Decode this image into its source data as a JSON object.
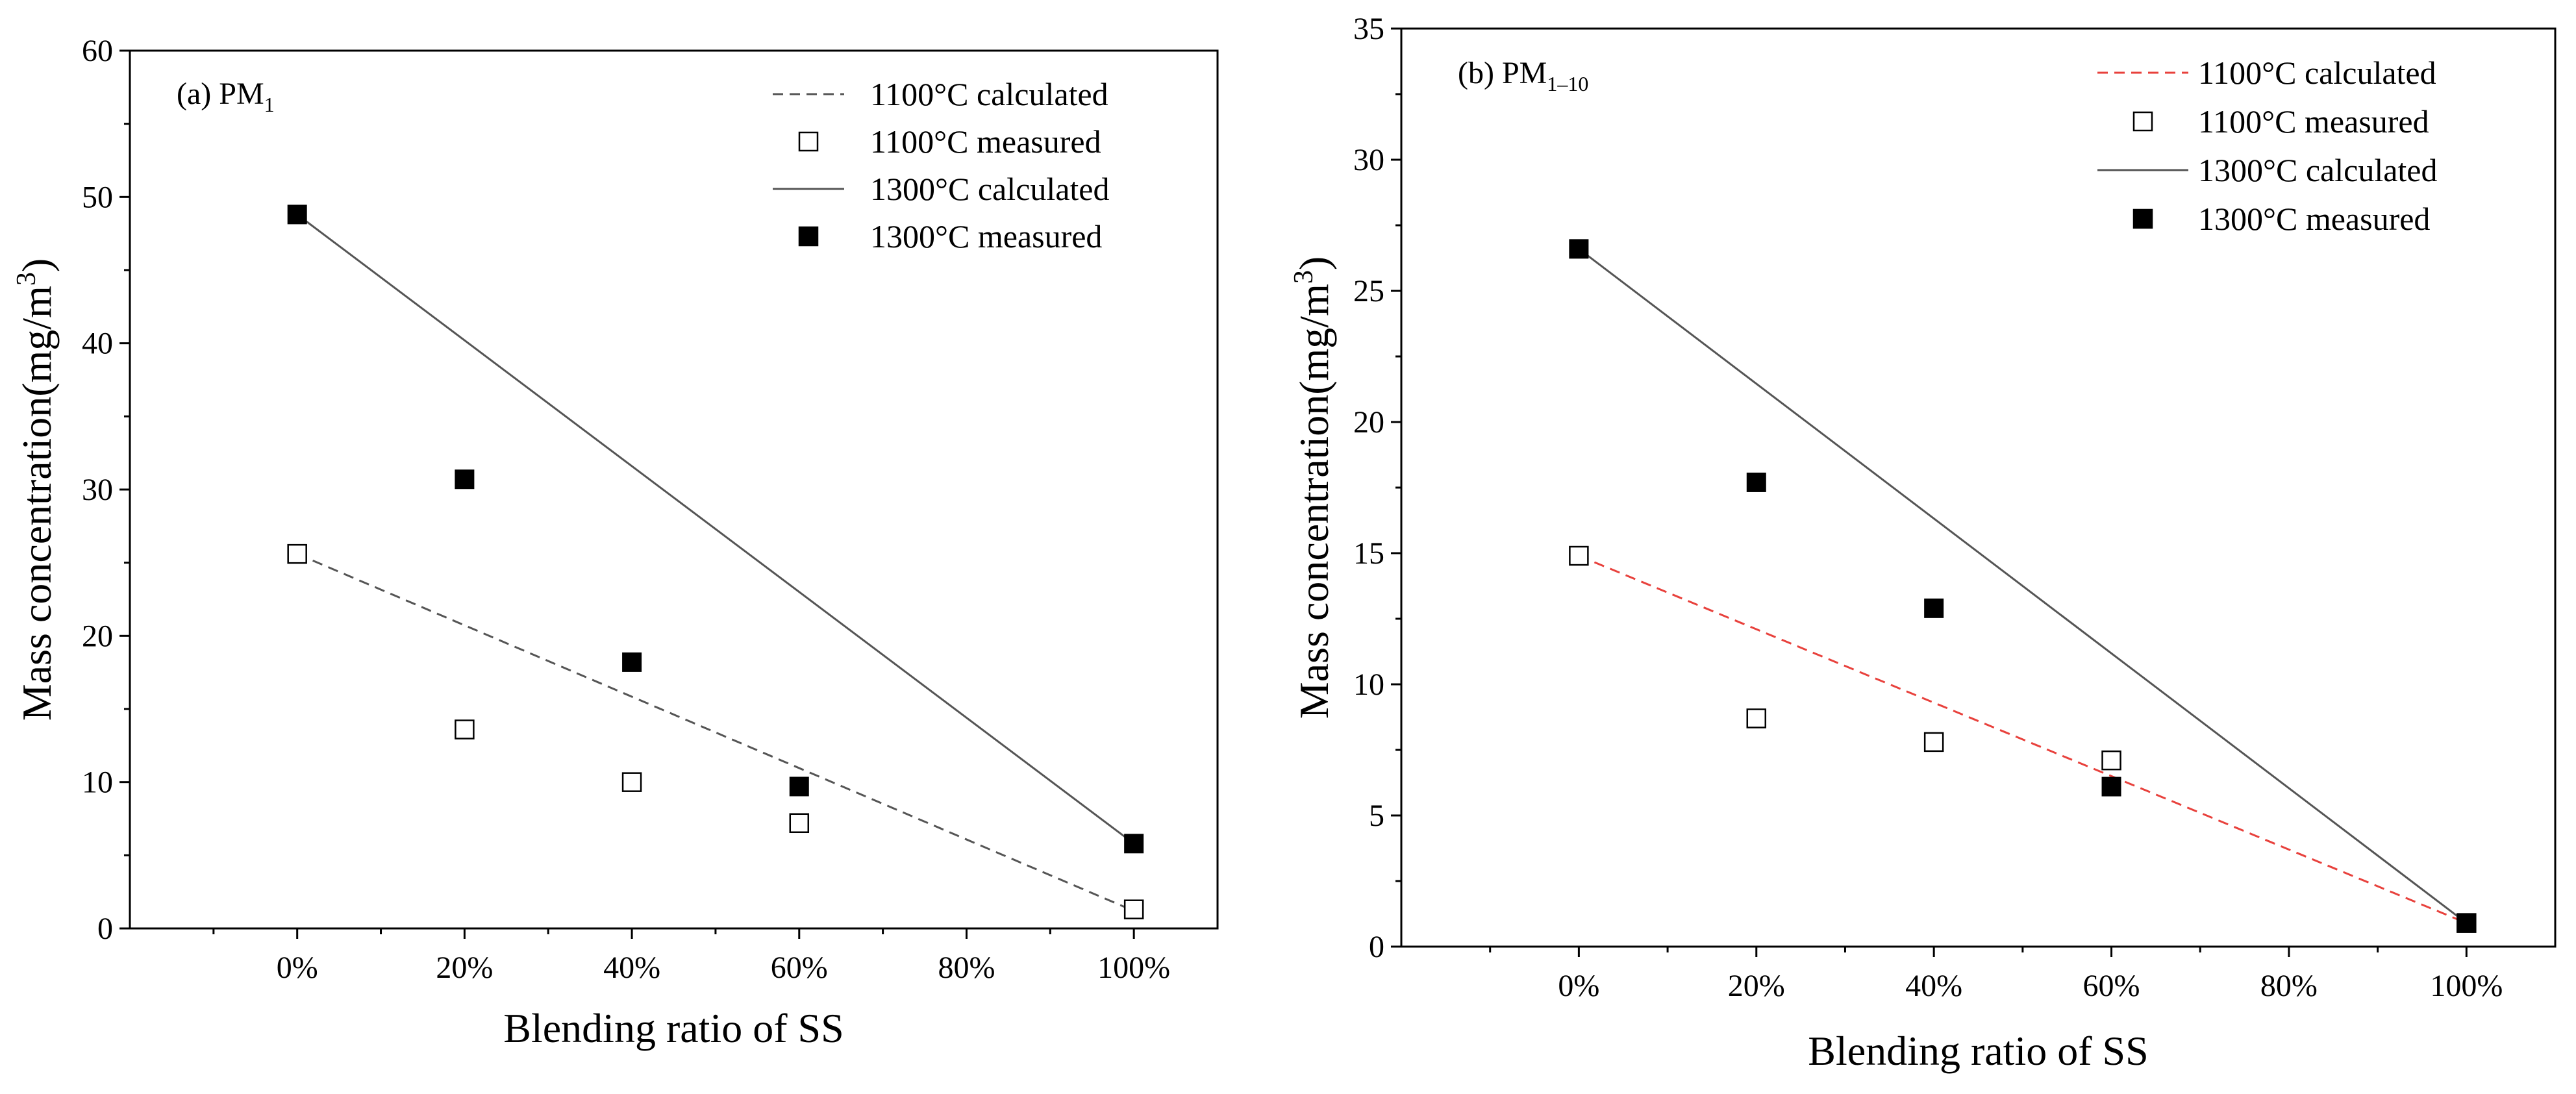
{
  "chart_data": [
    {
      "type": "scatter",
      "panel_label": "(a) PM",
      "panel_subscript": "1",
      "xlabel": "Blending ratio of SS",
      "ylabel": "Mass concentration(mg/m",
      "ylabel_sup": "3",
      "ylabel_close": ")",
      "x_categories": [
        "0%",
        "20%",
        "40%",
        "60%",
        "80%",
        "100%"
      ],
      "x_values": [
        0,
        20,
        40,
        60,
        80,
        100
      ],
      "xlim": [
        -20,
        110
      ],
      "ylim": [
        0,
        60
      ],
      "yticks": [
        0,
        10,
        20,
        30,
        40,
        50,
        60
      ],
      "grid": false,
      "legend_position": "top-right",
      "series": [
        {
          "name": "1100°C calculated",
          "style": "dashed-line",
          "color": "#555555",
          "x": [
            0,
            100
          ],
          "y": [
            25.6,
            1.2
          ]
        },
        {
          "name": "1100°C measured",
          "style": "open-square",
          "color": "#000000",
          "x": [
            0,
            20,
            40,
            60,
            100
          ],
          "y": [
            25.6,
            13.6,
            10.0,
            7.2,
            1.3
          ]
        },
        {
          "name": "1300°C calculated",
          "style": "solid-line",
          "color": "#555555",
          "x": [
            0,
            100
          ],
          "y": [
            48.8,
            5.8
          ]
        },
        {
          "name": "1300°C measured",
          "style": "filled-square",
          "color": "#000000",
          "x": [
            0,
            20,
            40,
            60,
            100
          ],
          "y": [
            48.8,
            30.7,
            18.2,
            9.7,
            5.8
          ]
        }
      ]
    },
    {
      "type": "scatter",
      "panel_label": "(b) PM",
      "panel_subscript": "1–10",
      "xlabel": "Blending ratio of SS",
      "ylabel": "Mass concentration(mg/m",
      "ylabel_sup": "3",
      "ylabel_close": ")",
      "x_categories": [
        "0%",
        "20%",
        "40%",
        "60%",
        "80%",
        "100%"
      ],
      "x_values": [
        0,
        20,
        40,
        60,
        80,
        100
      ],
      "xlim": [
        -20,
        110
      ],
      "ylim": [
        0,
        35
      ],
      "yticks": [
        0,
        5,
        10,
        15,
        20,
        25,
        30,
        35
      ],
      "grid": false,
      "legend_position": "top-right",
      "series": [
        {
          "name": "1100°C calculated",
          "style": "dashed-line",
          "color": "#e8413c",
          "x": [
            0,
            100
          ],
          "y": [
            14.9,
            0.9
          ]
        },
        {
          "name": "1100°C measured",
          "style": "open-square",
          "color": "#000000",
          "x": [
            0,
            20,
            40,
            60,
            100
          ],
          "y": [
            14.9,
            8.7,
            7.8,
            7.1,
            0.9
          ]
        },
        {
          "name": "1300°C calculated",
          "style": "solid-line",
          "color": "#555555",
          "x": [
            0,
            100
          ],
          "y": [
            26.6,
            0.9
          ]
        },
        {
          "name": "1300°C measured",
          "style": "filled-square",
          "color": "#000000",
          "x": [
            0,
            20,
            40,
            60,
            100
          ],
          "y": [
            26.6,
            17.7,
            12.9,
            6.1,
            0.9
          ]
        }
      ]
    }
  ]
}
